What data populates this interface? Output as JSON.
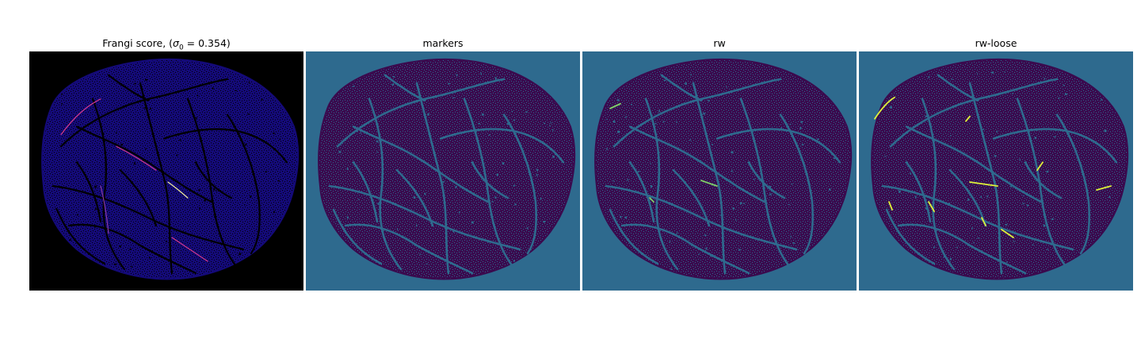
{
  "panels": [
    {
      "title_prefix": "Frangi score, (",
      "title_sigma": "σ",
      "title_sub": "0",
      "title_suffix": " = 0.354)",
      "background": "#000000",
      "tissue": "#140a78",
      "vessel": "#000000",
      "highlight": "#d63a8c",
      "highlight2": "#f5f0a0"
    },
    {
      "title": "markers",
      "background": "#2e6a8e",
      "tissue": "#3a0a4e",
      "vessel": "#2e6a8e",
      "highlight": "#2e6a8e"
    },
    {
      "title": "rw",
      "background": "#2e6a8e",
      "tissue": "#3a0a4e",
      "vessel": "#2e6a8e",
      "highlight": "#7fd36a"
    },
    {
      "title": "rw-loose",
      "background": "#2e6a8e",
      "tissue": "#3a0a4e",
      "vessel": "#2e6a8e",
      "highlight": "#dff23a"
    }
  ]
}
